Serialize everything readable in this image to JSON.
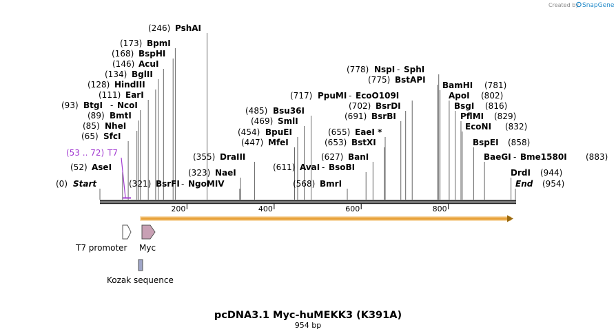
{
  "branding": {
    "prefix": "Created by",
    "name": "SnapGene"
  },
  "title": "pcDNA3.1 Myc-huMEKK3 (K391A)",
  "subtitle": "954 bp",
  "sequence_length": 954,
  "ruler": {
    "ticks": [
      200,
      400,
      600,
      800
    ]
  },
  "start_label": {
    "pos_text": "(0)",
    "name": "Start"
  },
  "end_label": {
    "name": "End",
    "pos_text": "(954)"
  },
  "primer": {
    "pos_text": "(53 .. 72)",
    "name": "T7",
    "color": "#a23bd1"
  },
  "sites": [
    {
      "pos": 52,
      "pos_text": "(52)",
      "name": "AseI",
      "side": "left"
    },
    {
      "pos": 65,
      "pos_text": "(65)",
      "name": "SfcI",
      "side": "left"
    },
    {
      "pos": 85,
      "pos_text": "(85)",
      "name": "NheI",
      "side": "left"
    },
    {
      "pos": 89,
      "pos_text": "(89)",
      "name": "BmtI",
      "side": "left"
    },
    {
      "pos": 93,
      "pos_text": "(93)",
      "name": "BtgI",
      "name2": "NcoI",
      "side": "left"
    },
    {
      "pos": 111,
      "pos_text": "(111)",
      "name": "EarI",
      "side": "left"
    },
    {
      "pos": 128,
      "pos_text": "(128)",
      "name": "HindIII",
      "side": "left"
    },
    {
      "pos": 134,
      "pos_text": "(134)",
      "name": "BglII",
      "side": "left"
    },
    {
      "pos": 146,
      "pos_text": "(146)",
      "name": "AcuI",
      "side": "left"
    },
    {
      "pos": 168,
      "pos_text": "(168)",
      "name": "BspHI",
      "side": "left"
    },
    {
      "pos": 173,
      "pos_text": "(173)",
      "name": "BpmI",
      "side": "left"
    },
    {
      "pos": 246,
      "pos_text": "(246)",
      "name": "PshAI",
      "side": "left"
    },
    {
      "pos": 321,
      "pos_text": "(321)",
      "name": "BsrFI",
      "name2": "NgoMIV",
      "side": "left"
    },
    {
      "pos": 323,
      "pos_text": "(323)",
      "name": "NaeI",
      "side": "left"
    },
    {
      "pos": 355,
      "pos_text": "(355)",
      "name": "DraIII",
      "side": "left"
    },
    {
      "pos": 447,
      "pos_text": "(447)",
      "name": "MfeI",
      "side": "left"
    },
    {
      "pos": 454,
      "pos_text": "(454)",
      "name": "BpuEI",
      "side": "left"
    },
    {
      "pos": 469,
      "pos_text": "(469)",
      "name": "SmlI",
      "side": "left"
    },
    {
      "pos": 485,
      "pos_text": "(485)",
      "name": "Bsu36I",
      "side": "left"
    },
    {
      "pos": 568,
      "pos_text": "(568)",
      "name": "BmrI",
      "side": "left"
    },
    {
      "pos": 611,
      "pos_text": "(611)",
      "name": "AvaI",
      "name2": "BsoBI",
      "side": "left"
    },
    {
      "pos": 627,
      "pos_text": "(627)",
      "name": "BanI",
      "side": "left"
    },
    {
      "pos": 653,
      "pos_text": "(653)",
      "name": "BstXI",
      "side": "left"
    },
    {
      "pos": 655,
      "pos_text": "(655)",
      "name": "EaeI *",
      "side": "left"
    },
    {
      "pos": 691,
      "pos_text": "(691)",
      "name": "BsrBI",
      "side": "left"
    },
    {
      "pos": 702,
      "pos_text": "(702)",
      "name": "BsrDI",
      "side": "left"
    },
    {
      "pos": 717,
      "pos_text": "(717)",
      "name": "PpuMI",
      "name2": "EcoO109I",
      "side": "left"
    },
    {
      "pos": 775,
      "pos_text": "(775)",
      "name": "BstAPI",
      "side": "left"
    },
    {
      "pos": 778,
      "pos_text": "(778)",
      "name": "NspI",
      "name2": "SphI",
      "side": "left"
    },
    {
      "pos": 781,
      "pos_text": "(781)",
      "name": "BamHI",
      "side": "right"
    },
    {
      "pos": 802,
      "pos_text": "(802)",
      "name": "ApoI",
      "side": "right"
    },
    {
      "pos": 816,
      "pos_text": "(816)",
      "name": "BsgI",
      "side": "right"
    },
    {
      "pos": 829,
      "pos_text": "(829)",
      "name": "PflMI",
      "side": "right"
    },
    {
      "pos": 832,
      "pos_text": "(832)",
      "name": "EcoNI",
      "side": "right"
    },
    {
      "pos": 858,
      "pos_text": "(858)",
      "name": "BspEI",
      "side": "right"
    },
    {
      "pos": 883,
      "pos_text": "(883)",
      "name": "BaeGI",
      "name2": "Bme1580I",
      "side": "right"
    },
    {
      "pos": 944,
      "pos_text": "(944)",
      "name": "DrdI",
      "side": "right"
    }
  ],
  "orf": {
    "from": 96,
    "to": 954,
    "color": "#e8a23a",
    "edge_color": "#9a6a10"
  },
  "features": [
    {
      "name": "T7 promoter",
      "shape": "arrow",
      "color": "#ffffff"
    },
    {
      "name": "Myc",
      "shape": "arrow",
      "color": "#c8a0b4"
    },
    {
      "name": "Kozak sequence",
      "shape": "box",
      "color": "#a0a6c8"
    }
  ]
}
